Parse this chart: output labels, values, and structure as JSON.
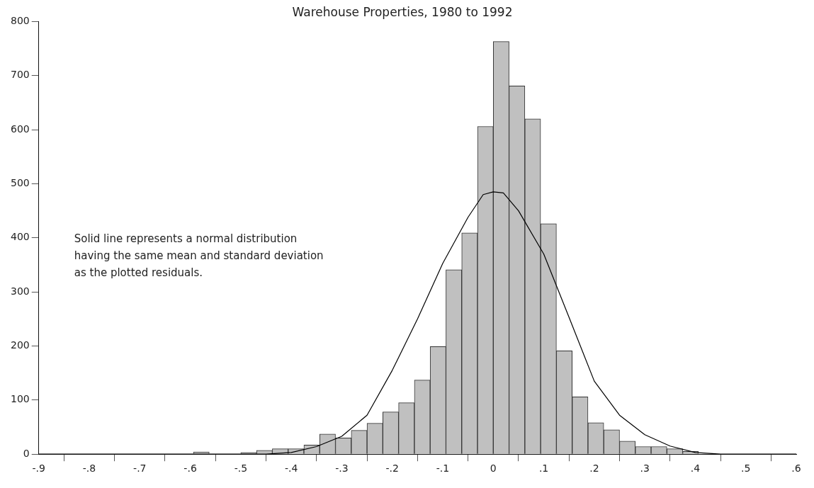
{
  "chart_data": {
    "type": "histogram",
    "title": "Warehouse Properties, 1980 to 1992",
    "bins": [
      -0.59375,
      -0.5625,
      -0.53125,
      -0.5,
      -0.46875,
      -0.4375,
      -0.40625,
      -0.375,
      -0.34375,
      -0.3125,
      -0.28125,
      -0.25,
      -0.21875,
      -0.1875,
      -0.15625,
      -0.125,
      -0.09375,
      -0.0625,
      -0.03125,
      0,
      0.03125,
      0.0625,
      0.09375,
      0.125,
      0.15625,
      0.1875,
      0.21875,
      0.25,
      0.28125,
      0.3125,
      0.34375,
      0.375,
      0.40625
    ],
    "values": [
      4,
      0,
      0,
      3,
      7,
      10,
      10,
      17,
      37,
      30,
      44,
      57,
      78,
      95,
      137,
      199,
      341,
      409,
      606,
      763,
      681,
      620,
      426,
      191,
      106,
      58,
      45,
      24,
      14,
      14,
      10,
      5
    ],
    "color": "#c0c0c0",
    "series": [
      {
        "type": "line",
        "color": "#000000",
        "x": [
          -0.9,
          -0.45,
          -0.4,
          -0.35,
          -0.3,
          -0.25,
          -0.2,
          -0.15,
          -0.1,
          -0.05,
          -0.02,
          0,
          0.02,
          0.05,
          0.1,
          0.15,
          0.2,
          0.25,
          0.3,
          0.35,
          0.4,
          0.45,
          0.6
        ],
        "values": [
          0,
          0,
          3,
          14,
          33,
          72,
          155,
          250,
          353,
          438,
          480,
          485,
          483,
          450,
          370,
          253,
          135,
          72,
          36,
          15,
          3,
          0,
          0
        ]
      }
    ],
    "xlim": [
      -0.9,
      0.6
    ],
    "xticks": [
      {
        "value": -0.9,
        "label": "-.9"
      },
      {
        "value": -0.8,
        "label": "-.8"
      },
      {
        "value": -0.7,
        "label": "-.7"
      },
      {
        "value": -0.6,
        "label": "-.6"
      },
      {
        "value": -0.5,
        "label": "-.5"
      },
      {
        "value": -0.4,
        "label": "-.4"
      },
      {
        "value": -0.3,
        "label": "-.3"
      },
      {
        "value": -0.2,
        "label": "-.2"
      },
      {
        "value": -0.1,
        "label": "-.1"
      },
      {
        "value": 0,
        "label": "0"
      },
      {
        "value": 0.1,
        "label": ".1"
      },
      {
        "value": 0.2,
        "label": ".2"
      },
      {
        "value": 0.3,
        "label": ".3"
      },
      {
        "value": 0.4,
        "label": ".4"
      },
      {
        "value": 0.5,
        "label": ".5"
      },
      {
        "value": 0.6,
        "label": ".6"
      }
    ],
    "ylim": [
      0,
      800
    ],
    "yticks": [
      0,
      100,
      200,
      300,
      400,
      500,
      600,
      700,
      800
    ],
    "grid": false,
    "legend": false,
    "annotations": [
      "Solid line represents a normal distribution\nhaving the same mean and standard deviation\nas the plotted residuals."
    ]
  }
}
